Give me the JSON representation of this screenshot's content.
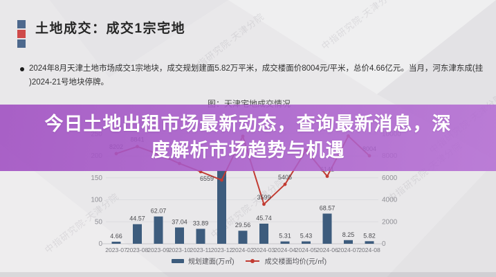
{
  "header": {
    "title": "土地成交：成交1宗宅地",
    "square_colors": [
      "#4d688d",
      "#cf4a4a",
      "#4d688d"
    ]
  },
  "bullet": {
    "lines": [
      "2024年8月天津土地市场成交1宗地块，成交规划建面5.82万平米，成交楼面价8004元/平米，总价4.66亿元。当月，河东津东成(挂",
      ")2024-21号地块停牌。"
    ]
  },
  "banner": {
    "lines": [
      "今日土地出租市场最新动态，查询最新消息，深",
      "度解析市场趋势与机遇"
    ],
    "bg_color": "#a75cc6",
    "text_color": "#ffffff"
  },
  "watermark": {
    "text": "中指研究院-天津分院"
  },
  "chart_data": {
    "type": "bar",
    "title": "图：天津宅地成交情况",
    "categories": [
      "2023-07",
      "2023-08",
      "2023-09",
      "2023-10",
      "2023-11",
      "2023-12",
      "2024-02",
      "2024-03",
      "2024-04",
      "2024-05",
      "2024-06",
      "2024-07",
      "2024-08"
    ],
    "series": [
      {
        "name": "规划建面(万㎡)",
        "type": "bar",
        "axis": "left",
        "color": "#3d5c7d",
        "values": [
          4.66,
          44.57,
          62.07,
          37.04,
          33.89,
          166.5,
          29.56,
          45.74,
          5.31,
          5.43,
          68.57,
          8.25,
          5.82
        ],
        "labels": [
          "4.66",
          "44.57",
          "62.07",
          "37.04",
          "33.89",
          "",
          "29.56",
          "45.74",
          "5.31",
          "5.43",
          "68.57",
          "8.25",
          "5.82"
        ]
      },
      {
        "name": "成交楼面均价(元/㎡)",
        "type": "line",
        "axis": "right",
        "color": "#c23b32",
        "values": [
          8202,
          8841,
          8150,
          7300,
          6559,
          5790,
          9780,
          3599,
          5405,
          8500,
          6141,
          9800,
          8004
        ],
        "labels": [
          "8202",
          "8841",
          "",
          "",
          "6559",
          "",
          "",
          "3599",
          "5405",
          "",
          "6141",
          "",
          "8004"
        ]
      }
    ],
    "left_axis": {
      "ticks": [
        0,
        50,
        100,
        150,
        200,
        250
      ]
    },
    "right_axis": {
      "ticks": [
        0,
        2000,
        4000,
        6000,
        8000,
        10000
      ]
    },
    "grid": true,
    "legend_position": "bottom"
  }
}
